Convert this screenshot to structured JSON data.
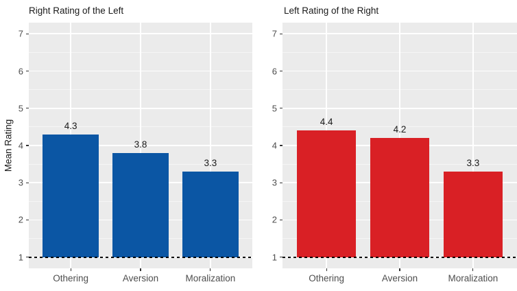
{
  "chart_data": [
    {
      "type": "bar",
      "title": "Right Rating of the Left",
      "ylabel": "Mean Rating",
      "categories": [
        "Othering",
        "Aversion",
        "Moralization"
      ],
      "values": [
        4.3,
        3.8,
        3.3
      ],
      "value_labels": [
        "4.3",
        "3.8",
        "3.3"
      ],
      "bar_color": "#0B56A4",
      "ylim": [
        1,
        7
      ],
      "yticks": [
        1,
        2,
        3,
        4,
        5,
        6,
        7
      ],
      "ytick_labels": [
        "1",
        "2",
        "3",
        "4",
        "5",
        "6",
        "7"
      ],
      "grid": true,
      "legend": "none",
      "reference_line": {
        "y": 1,
        "style": "dashed",
        "color": "#000000"
      }
    },
    {
      "type": "bar",
      "title": "Left Rating of the Right",
      "ylabel": "",
      "categories": [
        "Othering",
        "Aversion",
        "Moralization"
      ],
      "values": [
        4.4,
        4.2,
        3.3
      ],
      "value_labels": [
        "4.4",
        "4.2",
        "3.3"
      ],
      "bar_color": "#D92025",
      "ylim": [
        1,
        7
      ],
      "yticks": [
        1,
        2,
        3,
        4,
        5,
        6,
        7
      ],
      "ytick_labels": [
        "1",
        "2",
        "3",
        "4",
        "5",
        "6",
        "7"
      ],
      "grid": true,
      "legend": "none",
      "reference_line": {
        "y": 1,
        "style": "dashed",
        "color": "#000000"
      }
    }
  ],
  "style": {
    "panel_bg": "#EBEBEB",
    "grid_major": "#FFFFFF",
    "grid_minor": "#F6F6F6",
    "axis_text_color": "#4D4D4D",
    "title_text_color": "#1A1A1A",
    "tick_mark_color": "#333333",
    "baseline_color": "#000000"
  }
}
